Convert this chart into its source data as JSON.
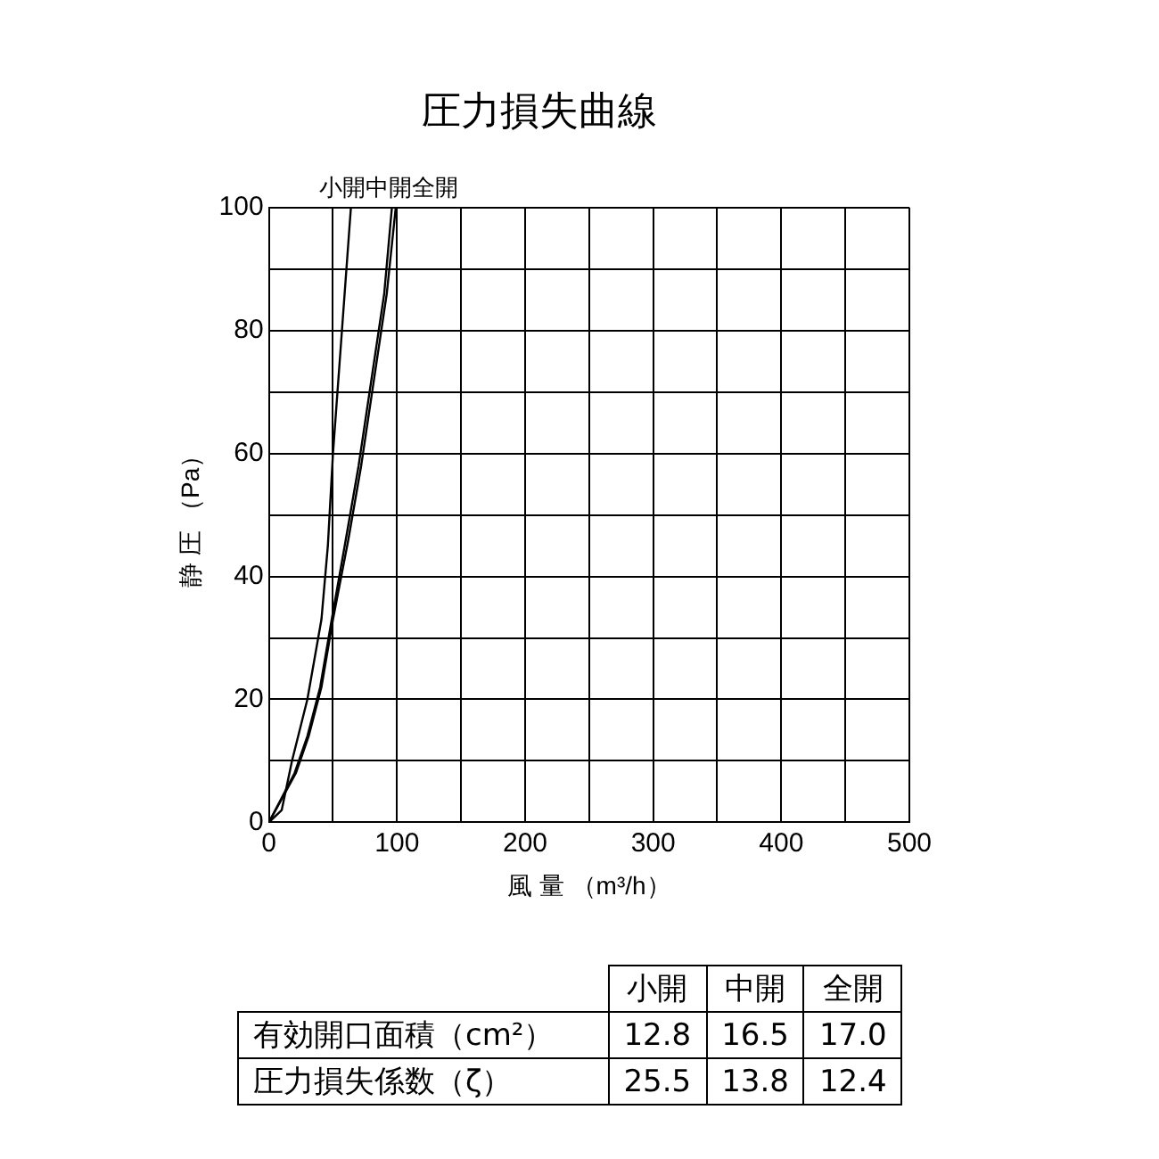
{
  "chart_data": {
    "type": "line",
    "title": "圧力損失曲線",
    "xlabel": "風 量 （m³/h）",
    "ylabel": "静 圧 （Pa）",
    "xlim": [
      0,
      500
    ],
    "ylim": [
      0,
      100
    ],
    "xticks": [
      0,
      {
        "value": 50,
        "label": null
      },
      100,
      {
        "value": 150,
        "label": null
      },
      200,
      {
        "value": 250,
        "label": null
      },
      300,
      {
        "value": 350,
        "label": null
      },
      400,
      {
        "value": 450,
        "label": null
      },
      500
    ],
    "yticks": [
      0,
      {
        "value": 10,
        "label": null
      },
      20,
      {
        "value": 30,
        "label": null
      },
      40,
      {
        "value": 50,
        "label": null
      },
      60,
      {
        "value": 70,
        "label": null
      },
      80,
      {
        "value": 90,
        "label": null
      },
      100
    ],
    "grid": true,
    "legend": false,
    "marker": "none",
    "line_style": "solid",
    "series": [
      {
        "name": "小開",
        "color": "#000000",
        "x": [
          0,
          10,
          18,
          30,
          41,
          46,
          50,
          57,
          64
        ],
        "values": [
          0,
          2,
          10,
          20,
          33,
          45,
          60,
          80,
          100
        ]
      },
      {
        "name": "中開",
        "color": "#000000",
        "x": [
          0,
          20,
          30,
          40,
          49,
          60,
          70,
          80,
          90,
          96
        ],
        "values": [
          0,
          8,
          14,
          22,
          33,
          46,
          58,
          72,
          86,
          100
        ]
      },
      {
        "name": "全開",
        "color": "#000000",
        "x": [
          0,
          21,
          31,
          41,
          50,
          62,
          72,
          82,
          92,
          99
        ],
        "values": [
          0,
          8,
          14,
          22,
          33,
          46,
          58,
          72,
          86,
          100
        ]
      }
    ],
    "annotations": [
      "小開",
      "中開",
      "全開",
      "有効開口面積（cm²）",
      "12.8",
      "16.5",
      "17.0",
      "圧力損失係数（ζ）",
      "25.5",
      "13.8",
      "12.4"
    ]
  }
}
